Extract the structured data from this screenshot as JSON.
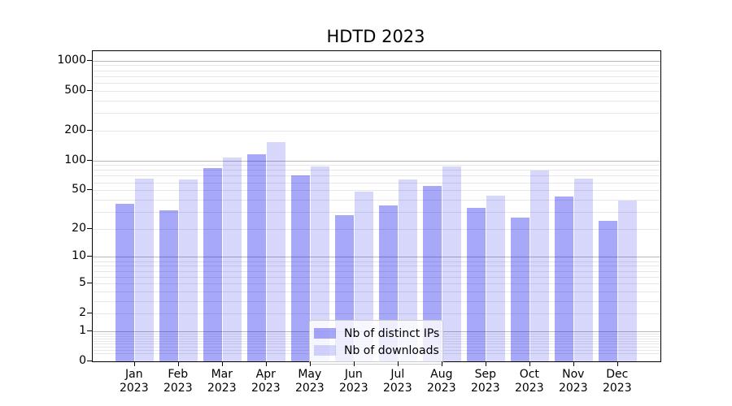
{
  "title": "HDTD 2023",
  "chart_data": {
    "type": "bar",
    "title": "HDTD 2023",
    "yscale": "log10(1+value)",
    "grid": true,
    "legend_position": "lower center",
    "categories": [
      "Jan",
      "Feb",
      "Mar",
      "Apr",
      "May",
      "Jun",
      "Jul",
      "Aug",
      "Sep",
      "Oct",
      "Nov",
      "Dec"
    ],
    "x_year_line": "2023",
    "series": [
      {
        "name": "Nb of distinct IPs",
        "color": "rgba(0,0,238,0.34)",
        "solid_equivalent": "#a8a8f9",
        "values": [
          36,
          31,
          84,
          115,
          70,
          28,
          35,
          55,
          33,
          26,
          43,
          24
        ]
      },
      {
        "name": "Nb of downloads",
        "color": "rgba(0,0,238,0.155)",
        "solid_equivalent": "#d7d7fc",
        "values": [
          65,
          64,
          108,
          152,
          87,
          48,
          64,
          87,
          44,
          79,
          65,
          39
        ]
      }
    ],
    "y_ticks": [
      0,
      1,
      2,
      5,
      10,
      20,
      50,
      100,
      200,
      500,
      1000
    ],
    "y_gridlines_major": [
      1,
      10,
      100,
      1000
    ],
    "y_gridlines_minor": [
      0.2,
      0.3,
      0.4,
      0.5,
      0.6,
      0.7,
      0.8,
      0.9,
      2,
      3,
      4,
      5,
      6,
      7,
      8,
      9,
      20,
      30,
      40,
      50,
      60,
      70,
      80,
      90,
      200,
      300,
      400,
      500,
      600,
      700,
      800,
      900
    ],
    "ylim": [
      0,
      1250
    ],
    "axis_color": "#000000",
    "major_grid_color": "#b9b9b9",
    "minor_grid_color": "#e7e7ea"
  }
}
